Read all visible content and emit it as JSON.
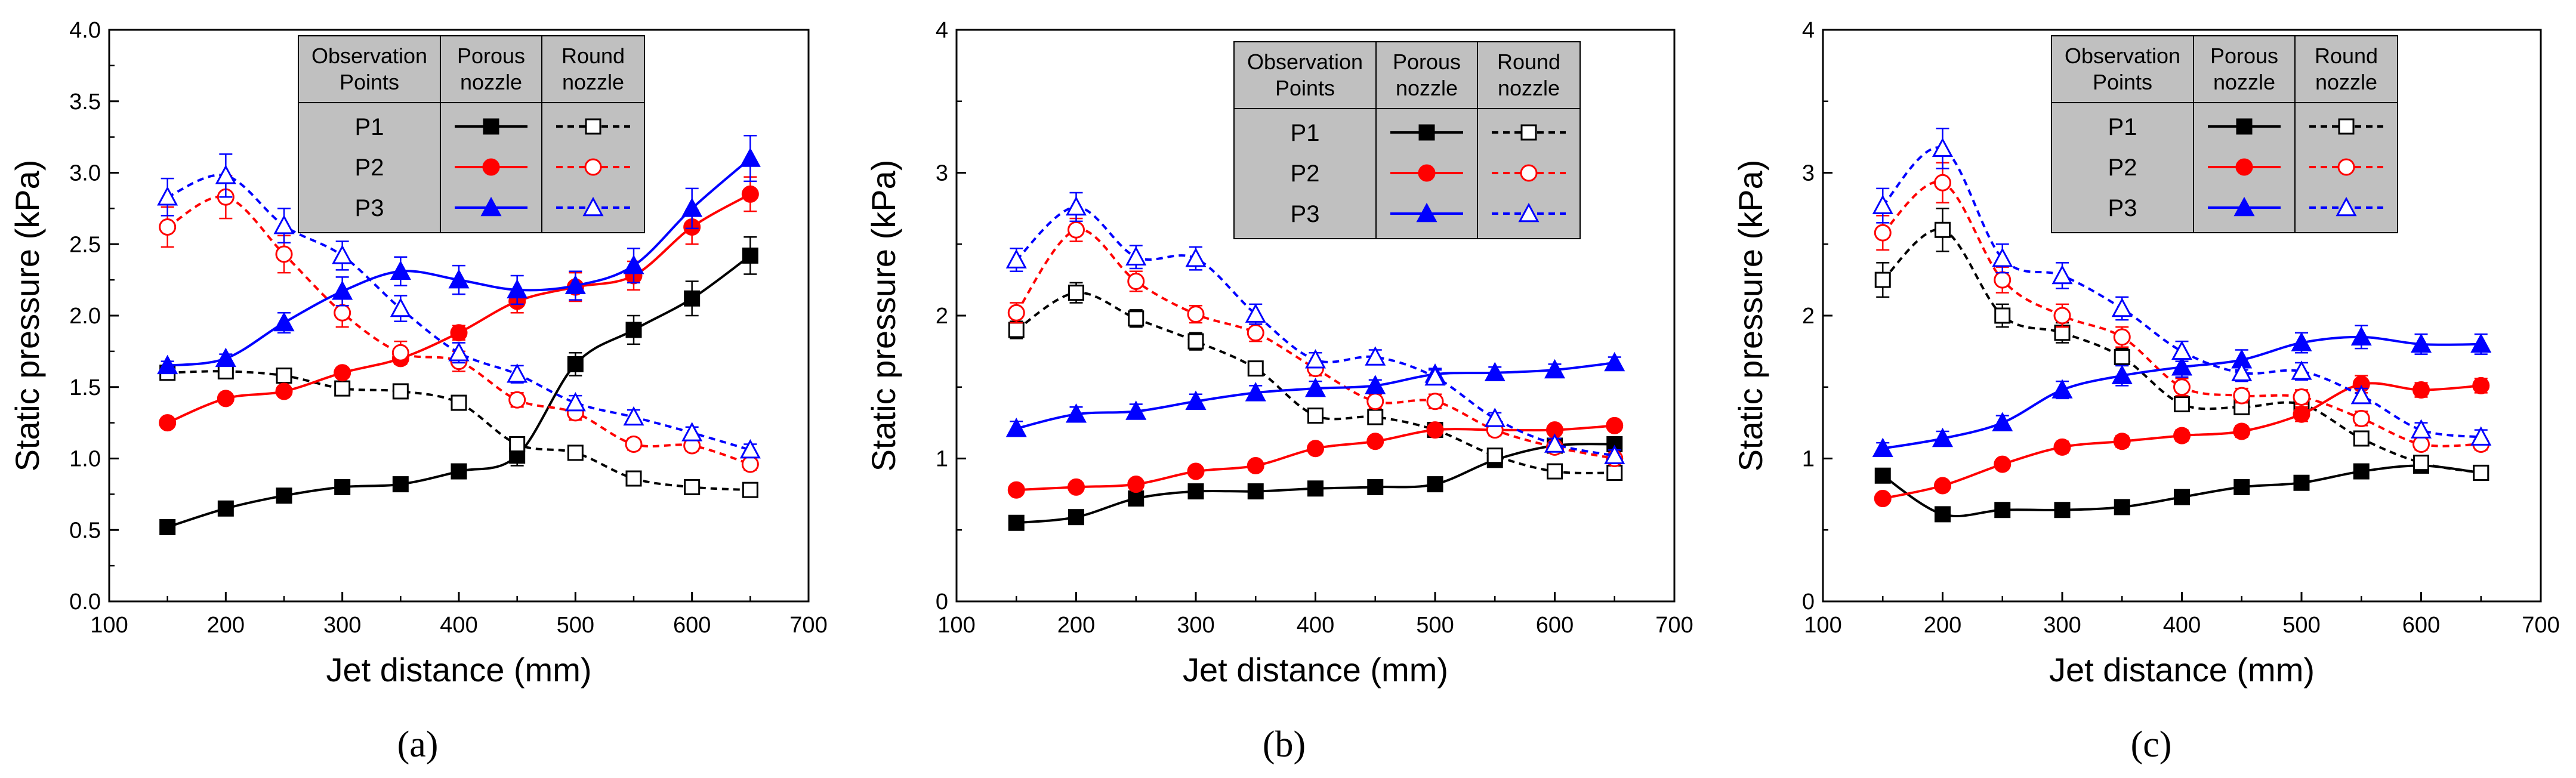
{
  "figure": {
    "x_axis_label": "Jet distance (mm)",
    "y_axis_label": "Static pressure (kPa)"
  },
  "legend_header": {
    "col1": [
      "Observation",
      "Points"
    ],
    "col2": [
      "Porous",
      "nozzle"
    ],
    "col3": [
      "Round",
      "nozzle"
    ]
  },
  "legend_rows": [
    "P1",
    "P2",
    "P3"
  ],
  "colors": {
    "P1": "#000000",
    "P2": "#ff0000",
    "P3": "#0000ff",
    "legend_bg": "#c0c0c0"
  },
  "chart_data": [
    {
      "type": "line",
      "panel_label": "(a)",
      "xlabel": "Jet distance (mm)",
      "ylabel": "Static pressure (kPa)",
      "xlim": [
        100,
        700
      ],
      "ylim": [
        0,
        4
      ],
      "x_ticks": [
        "100",
        "200",
        "300",
        "400",
        "500",
        "600",
        "700"
      ],
      "y_ticks": [
        "0.0",
        "0.5",
        "1.0",
        "1.5",
        "2.0",
        "2.5",
        "3.0",
        "3.5",
        "4.0"
      ],
      "x": [
        150,
        200,
        250,
        300,
        350,
        400,
        450,
        500,
        550,
        600,
        650
      ],
      "series": [
        {
          "name": "P1 Porous nozzle",
          "point": "P1",
          "nozzle": "porous",
          "color": "#000000",
          "marker": "square-filled",
          "dashed": false,
          "values": [
            0.52,
            0.65,
            0.74,
            0.8,
            0.82,
            0.91,
            1.02,
            1.66,
            1.9,
            2.12,
            2.42
          ],
          "errors": [
            0.02,
            0.02,
            0.02,
            0.03,
            0.03,
            0.05,
            0.07,
            0.08,
            0.1,
            0.12,
            0.13
          ]
        },
        {
          "name": "P1 Round nozzle",
          "point": "P1",
          "nozzle": "round",
          "color": "#000000",
          "marker": "square-open",
          "dashed": true,
          "values": [
            1.6,
            1.61,
            1.58,
            1.49,
            1.47,
            1.39,
            1.1,
            1.04,
            0.86,
            0.8,
            0.78
          ],
          "errors": [
            0.05,
            0.05,
            0.05,
            0.05,
            0.05,
            0.05,
            0.05,
            0.03,
            0.03,
            0.02,
            0.02
          ]
        },
        {
          "name": "P2 Porous nozzle",
          "point": "P2",
          "nozzle": "porous",
          "color": "#ff0000",
          "marker": "circle-filled",
          "dashed": false,
          "values": [
            1.25,
            1.42,
            1.47,
            1.6,
            1.7,
            1.88,
            2.1,
            2.2,
            2.28,
            2.62,
            2.85
          ],
          "errors": [
            0.02,
            0.03,
            0.03,
            0.03,
            0.04,
            0.05,
            0.08,
            0.1,
            0.1,
            0.12,
            0.12
          ]
        },
        {
          "name": "P2 Round nozzle",
          "point": "P2",
          "nozzle": "round",
          "color": "#ff0000",
          "marker": "circle-open",
          "dashed": true,
          "values": [
            2.62,
            2.83,
            2.43,
            2.02,
            1.74,
            1.68,
            1.41,
            1.32,
            1.1,
            1.09,
            0.96
          ],
          "errors": [
            0.14,
            0.15,
            0.13,
            0.1,
            0.08,
            0.07,
            0.05,
            0.05,
            0.04,
            0.04,
            0.04
          ]
        },
        {
          "name": "P3 Porous nozzle",
          "point": "P3",
          "nozzle": "porous",
          "color": "#0000ff",
          "marker": "triangle-filled",
          "dashed": false,
          "values": [
            1.65,
            1.7,
            1.95,
            2.17,
            2.31,
            2.25,
            2.18,
            2.21,
            2.35,
            2.75,
            3.1
          ],
          "errors": [
            0.03,
            0.03,
            0.07,
            0.1,
            0.1,
            0.1,
            0.1,
            0.1,
            0.12,
            0.14,
            0.16
          ]
        },
        {
          "name": "P3 Round nozzle",
          "point": "P3",
          "nozzle": "round",
          "color": "#0000ff",
          "marker": "triangle-open",
          "dashed": true,
          "values": [
            2.83,
            2.98,
            2.63,
            2.42,
            2.05,
            1.74,
            1.59,
            1.39,
            1.29,
            1.18,
            1.06
          ],
          "errors": [
            0.13,
            0.15,
            0.12,
            0.1,
            0.09,
            0.07,
            0.06,
            0.05,
            0.05,
            0.04,
            0.04
          ]
        }
      ]
    },
    {
      "type": "line",
      "panel_label": "(b)",
      "xlabel": "Jet distance (mm)",
      "ylabel": "Static pressure (kPa)",
      "xlim": [
        100,
        700
      ],
      "ylim": [
        0,
        4
      ],
      "x_ticks": [
        "100",
        "200",
        "300",
        "400",
        "500",
        "600",
        "700"
      ],
      "y_ticks": [
        "0",
        "1",
        "2",
        "3",
        "4"
      ],
      "x": [
        150,
        200,
        250,
        300,
        350,
        400,
        450,
        500,
        550,
        600,
        650
      ],
      "series": [
        {
          "name": "P1 Porous nozzle",
          "point": "P1",
          "nozzle": "porous",
          "color": "#000000",
          "marker": "square-filled",
          "dashed": false,
          "values": [
            0.55,
            0.59,
            0.72,
            0.77,
            0.77,
            0.79,
            0.8,
            0.82,
            0.99,
            1.09,
            1.1
          ],
          "errors": [
            0.02,
            0.02,
            0.03,
            0.03,
            0.03,
            0.02,
            0.02,
            0.02,
            0.03,
            0.03,
            0.03
          ]
        },
        {
          "name": "P1 Round nozzle",
          "point": "P1",
          "nozzle": "round",
          "color": "#000000",
          "marker": "square-open",
          "dashed": true,
          "values": [
            1.9,
            2.16,
            1.98,
            1.82,
            1.63,
            1.3,
            1.29,
            1.2,
            1.02,
            0.91,
            0.9
          ],
          "errors": [
            0.06,
            0.07,
            0.06,
            0.06,
            0.05,
            0.04,
            0.04,
            0.04,
            0.03,
            0.03,
            0.03
          ]
        },
        {
          "name": "P2 Porous nozzle",
          "point": "P2",
          "nozzle": "porous",
          "color": "#ff0000",
          "marker": "circle-filled",
          "dashed": false,
          "values": [
            0.78,
            0.8,
            0.82,
            0.91,
            0.95,
            1.07,
            1.12,
            1.2,
            1.2,
            1.2,
            1.23
          ],
          "errors": [
            0.02,
            0.02,
            0.02,
            0.03,
            0.03,
            0.03,
            0.03,
            0.03,
            0.03,
            0.03,
            0.03
          ]
        },
        {
          "name": "P2 Round nozzle",
          "point": "P2",
          "nozzle": "round",
          "color": "#ff0000",
          "marker": "circle-open",
          "dashed": true,
          "values": [
            2.02,
            2.6,
            2.24,
            2.01,
            1.88,
            1.63,
            1.4,
            1.4,
            1.2,
            1.08,
            1.0
          ],
          "errors": [
            0.07,
            0.08,
            0.07,
            0.06,
            0.06,
            0.05,
            0.05,
            0.05,
            0.04,
            0.03,
            0.03
          ]
        },
        {
          "name": "P3 Porous nozzle",
          "point": "P3",
          "nozzle": "porous",
          "color": "#0000ff",
          "marker": "triangle-filled",
          "dashed": false,
          "values": [
            1.21,
            1.31,
            1.33,
            1.4,
            1.46,
            1.49,
            1.51,
            1.59,
            1.6,
            1.62,
            1.67
          ],
          "errors": [
            0.05,
            0.05,
            0.05,
            0.05,
            0.05,
            0.05,
            0.04,
            0.04,
            0.04,
            0.04,
            0.04
          ]
        },
        {
          "name": "P3 Round nozzle",
          "point": "P3",
          "nozzle": "round",
          "color": "#0000ff",
          "marker": "triangle-open",
          "dashed": true,
          "values": [
            2.39,
            2.76,
            2.41,
            2.4,
            2.01,
            1.69,
            1.71,
            1.57,
            1.28,
            1.1,
            1.02
          ],
          "errors": [
            0.08,
            0.1,
            0.08,
            0.08,
            0.07,
            0.05,
            0.05,
            0.05,
            0.04,
            0.04,
            0.04
          ]
        }
      ]
    },
    {
      "type": "line",
      "panel_label": "(c)",
      "xlabel": "Jet distance (mm)",
      "ylabel": "Static pressure (kPa)",
      "xlim": [
        100,
        700
      ],
      "ylim": [
        0,
        4
      ],
      "x_ticks": [
        "100",
        "200",
        "300",
        "400",
        "500",
        "600",
        "700"
      ],
      "y_ticks": [
        "0",
        "1",
        "2",
        "3",
        "4"
      ],
      "x": [
        150,
        200,
        250,
        300,
        350,
        400,
        450,
        500,
        550,
        600,
        650
      ],
      "series": [
        {
          "name": "P1 Porous nozzle",
          "point": "P1",
          "nozzle": "porous",
          "color": "#000000",
          "marker": "square-filled",
          "dashed": false,
          "values": [
            0.88,
            0.61,
            0.64,
            0.64,
            0.66,
            0.73,
            0.8,
            0.83,
            0.91,
            0.95,
            0.9
          ],
          "errors": [
            0.02,
            0.02,
            0.02,
            0.02,
            0.02,
            0.02,
            0.02,
            0.02,
            0.02,
            0.02,
            0.02
          ]
        },
        {
          "name": "P1 Round nozzle",
          "point": "P1",
          "nozzle": "round",
          "color": "#000000",
          "marker": "square-open",
          "dashed": true,
          "values": [
            2.25,
            2.6,
            2.0,
            1.88,
            1.71,
            1.38,
            1.36,
            1.38,
            1.14,
            0.97,
            0.9
          ],
          "errors": [
            0.12,
            0.15,
            0.08,
            0.07,
            0.06,
            0.05,
            0.05,
            0.05,
            0.04,
            0.03,
            0.03
          ]
        },
        {
          "name": "P2 Porous nozzle",
          "point": "P2",
          "nozzle": "porous",
          "color": "#ff0000",
          "marker": "circle-filled",
          "dashed": false,
          "values": [
            0.72,
            0.81,
            0.96,
            1.08,
            1.12,
            1.16,
            1.19,
            1.31,
            1.52,
            1.48,
            1.51
          ],
          "errors": [
            0.02,
            0.03,
            0.03,
            0.04,
            0.04,
            0.04,
            0.04,
            0.05,
            0.06,
            0.05,
            0.05
          ]
        },
        {
          "name": "P2 Round nozzle",
          "point": "P2",
          "nozzle": "round",
          "color": "#ff0000",
          "marker": "circle-open",
          "dashed": true,
          "values": [
            2.58,
            2.93,
            2.25,
            2.0,
            1.85,
            1.5,
            1.44,
            1.43,
            1.28,
            1.1,
            1.1
          ],
          "errors": [
            0.12,
            0.14,
            0.09,
            0.08,
            0.07,
            0.06,
            0.05,
            0.05,
            0.05,
            0.04,
            0.04
          ]
        },
        {
          "name": "P3 Porous nozzle",
          "point": "P3",
          "nozzle": "porous",
          "color": "#0000ff",
          "marker": "triangle-filled",
          "dashed": false,
          "values": [
            1.07,
            1.14,
            1.25,
            1.48,
            1.58,
            1.64,
            1.69,
            1.81,
            1.85,
            1.8,
            1.8
          ],
          "errors": [
            0.04,
            0.05,
            0.05,
            0.06,
            0.07,
            0.07,
            0.07,
            0.07,
            0.08,
            0.07,
            0.07
          ]
        },
        {
          "name": "P3 Round nozzle",
          "point": "P3",
          "nozzle": "round",
          "color": "#0000ff",
          "marker": "triangle-open",
          "dashed": true,
          "values": [
            2.77,
            3.17,
            2.4,
            2.28,
            2.05,
            1.75,
            1.6,
            1.61,
            1.44,
            1.2,
            1.15
          ],
          "errors": [
            0.12,
            0.14,
            0.1,
            0.09,
            0.08,
            0.07,
            0.06,
            0.06,
            0.05,
            0.05,
            0.05
          ]
        }
      ]
    }
  ]
}
